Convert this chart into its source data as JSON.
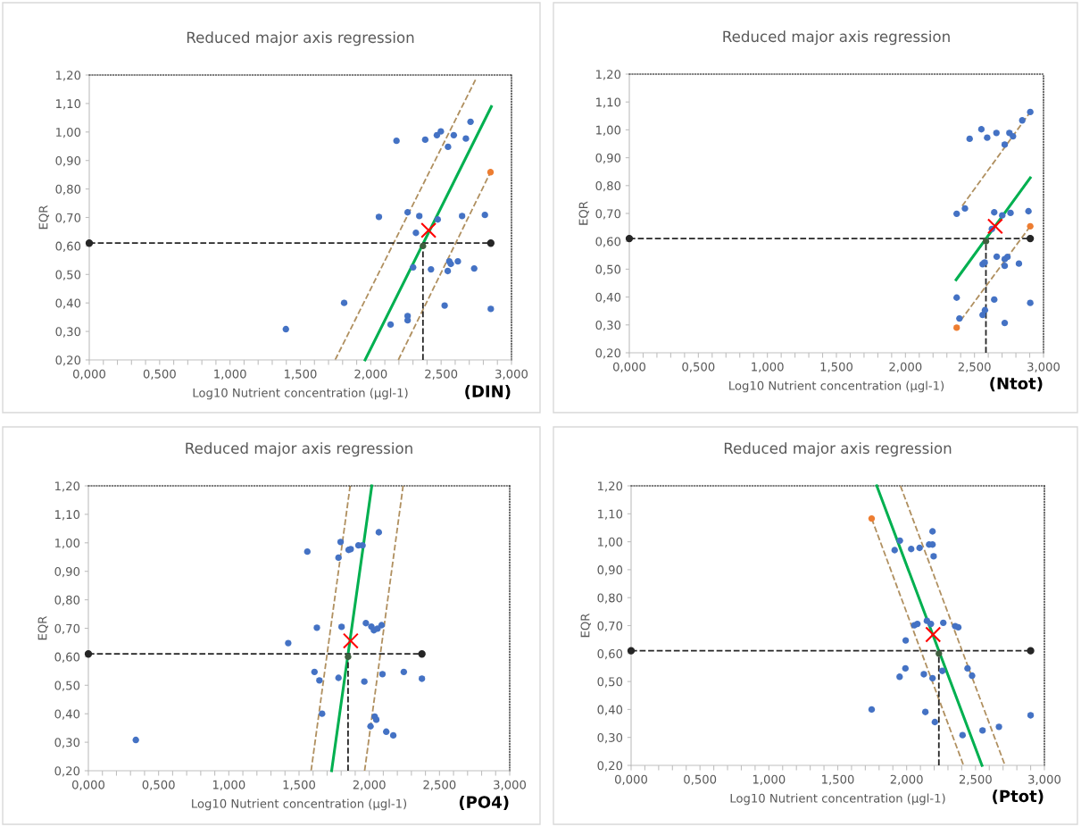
{
  "chart_data": [
    {
      "type": "scatter",
      "title": "Reduced major axis regression",
      "xlabel": "Log10 Nutrient concentration (µgl-1)",
      "ylabel": "EQR",
      "annotations": [
        "(DIN)"
      ],
      "xlim": [
        0,
        3
      ],
      "ylim": [
        0.2,
        1.2
      ],
      "xticks": [
        {
          "value": 0,
          "label": "0,000"
        },
        {
          "value": 0.1,
          "label": null
        },
        {
          "value": 0.2,
          "label": null
        },
        {
          "value": 0.3,
          "label": null
        },
        {
          "value": 0.4,
          "label": null
        },
        {
          "value": 0.5,
          "label": "0,500"
        },
        {
          "value": 0.6,
          "label": null
        },
        {
          "value": 0.7,
          "label": null
        },
        {
          "value": 0.8,
          "label": null
        },
        {
          "value": 0.9,
          "label": null
        },
        {
          "value": 1,
          "label": "1,000"
        },
        {
          "value": 1.1,
          "label": null
        },
        {
          "value": 1.2,
          "label": null
        },
        {
          "value": 1.3,
          "label": null
        },
        {
          "value": 1.4,
          "label": null
        },
        {
          "value": 1.5,
          "label": "1,500"
        },
        {
          "value": 1.6,
          "label": null
        },
        {
          "value": 1.7,
          "label": null
        },
        {
          "value": 1.8,
          "label": null
        },
        {
          "value": 1.9,
          "label": null
        },
        {
          "value": 2,
          "label": "2,000"
        },
        {
          "value": 2.1,
          "label": null
        },
        {
          "value": 2.2,
          "label": null
        },
        {
          "value": 2.3,
          "label": null
        },
        {
          "value": 2.4,
          "label": null
        },
        {
          "value": 2.5,
          "label": "2,500"
        },
        {
          "value": 2.6,
          "label": null
        },
        {
          "value": 2.7,
          "label": null
        },
        {
          "value": 2.8,
          "label": null
        },
        {
          "value": 2.9,
          "label": null
        },
        {
          "value": 3,
          "label": "3,000"
        }
      ],
      "yticks": [
        {
          "value": 0.2,
          "label": "0,20"
        },
        {
          "value": 0.3,
          "label": "0,30"
        },
        {
          "value": 0.4,
          "label": "0,40"
        },
        {
          "value": 0.5,
          "label": "0,50"
        },
        {
          "value": 0.6,
          "label": "0,60"
        },
        {
          "value": 0.7,
          "label": "0,70"
        },
        {
          "value": 0.8,
          "label": "0,80"
        },
        {
          "value": 0.9,
          "label": "0,90"
        },
        {
          "value": 1.0,
          "label": "1,00"
        },
        {
          "value": 1.1,
          "label": "1,10"
        },
        {
          "value": 1.2,
          "label": "1,20"
        }
      ],
      "series": [
        {
          "type": "line",
          "color": "#b09060",
          "line_style": "dashed",
          "marker": "none",
          "x": [
            1.747,
            2.744
          ],
          "values": [
            0.2,
            1.183
          ]
        },
        {
          "type": "line",
          "color": "#b09060",
          "line_style": "dashed",
          "marker": "none",
          "x": [
            2.196,
            2.851
          ],
          "values": [
            0.2,
            0.859
          ]
        },
        {
          "type": "line",
          "color": "#00b050",
          "line_style": "solid",
          "marker": "none",
          "x": [
            1.96,
            2.857
          ],
          "values": [
            0.2,
            1.089
          ]
        },
        {
          "type": "line",
          "color": "#262626",
          "line_style": "dashed",
          "marker": "circle",
          "x": [
            0,
            2.853
          ],
          "values": [
            0.61,
            0.61
          ]
        },
        {
          "type": "line",
          "color": "#262626",
          "line_style": "dashed",
          "marker": "none",
          "x": [
            2.371,
            2.371
          ],
          "values": [
            0.2,
            0.6
          ]
        },
        {
          "type": "scatter",
          "color": "#4472c4",
          "marker": "circle",
          "x": [
            1.397,
            1.811,
            2.058,
            2.183,
            2.141,
            2.262,
            2.262,
            2.262,
            2.301,
            2.321,
            2.345,
            2.387,
            2.428,
            2.47,
            2.498,
            2.476,
            2.549,
            2.525,
            2.547,
            2.558,
            2.569,
            2.59,
            2.619,
            2.649,
            2.676,
            2.709,
            2.735,
            2.811,
            2.853
          ],
          "values": [
            0.308,
            0.4,
            0.702,
            0.969,
            0.324,
            0.718,
            0.354,
            0.339,
            0.525,
            0.646,
            0.705,
            0.973,
            0.518,
            0.989,
            1.002,
            0.693,
            0.948,
            0.391,
            0.512,
            0.546,
            0.537,
            0.989,
            0.546,
            0.705,
            0.977,
            1.036,
            0.521,
            0.709,
            0.379
          ]
        },
        {
          "type": "scatter",
          "color": "#ed7d31",
          "marker": "circle",
          "x": [
            2.851
          ],
          "values": [
            0.859
          ]
        },
        {
          "type": "scatter",
          "color": "#ff0000",
          "marker": "cross",
          "x": [
            2.411
          ],
          "values": [
            0.655
          ]
        },
        {
          "type": "scatter",
          "color": "#3f5f3f",
          "marker": "circle",
          "x": [
            2.371
          ],
          "values": [
            0.6
          ]
        }
      ]
    },
    {
      "type": "scatter",
      "title": "Reduced major axis regression",
      "xlabel": "Log10 Nutrient concentration (µgl-1)",
      "ylabel": "EQR",
      "annotations": [
        "(Ntot)"
      ],
      "xlim": [
        0,
        3
      ],
      "ylim": [
        0.2,
        1.2
      ],
      "xticks": [
        {
          "value": 0,
          "label": "0,000"
        },
        {
          "value": 0.1,
          "label": null
        },
        {
          "value": 0.2,
          "label": null
        },
        {
          "value": 0.3,
          "label": null
        },
        {
          "value": 0.4,
          "label": null
        },
        {
          "value": 0.5,
          "label": "0,500"
        },
        {
          "value": 0.6,
          "label": null
        },
        {
          "value": 0.7,
          "label": null
        },
        {
          "value": 0.8,
          "label": null
        },
        {
          "value": 0.9,
          "label": null
        },
        {
          "value": 1,
          "label": "1,000"
        },
        {
          "value": 1.1,
          "label": null
        },
        {
          "value": 1.2,
          "label": null
        },
        {
          "value": 1.3,
          "label": null
        },
        {
          "value": 1.4,
          "label": null
        },
        {
          "value": 1.5,
          "label": "1,500"
        },
        {
          "value": 1.6,
          "label": null
        },
        {
          "value": 1.7,
          "label": null
        },
        {
          "value": 1.8,
          "label": null
        },
        {
          "value": 1.9,
          "label": null
        },
        {
          "value": 2,
          "label": "2,000"
        },
        {
          "value": 2.1,
          "label": null
        },
        {
          "value": 2.2,
          "label": null
        },
        {
          "value": 2.3,
          "label": null
        },
        {
          "value": 2.4,
          "label": null
        },
        {
          "value": 2.5,
          "label": "2,500"
        },
        {
          "value": 2.6,
          "label": null
        },
        {
          "value": 2.7,
          "label": null
        },
        {
          "value": 2.8,
          "label": null
        },
        {
          "value": 2.9,
          "label": null
        },
        {
          "value": 3,
          "label": "3,000"
        }
      ],
      "yticks": [
        {
          "value": 0.2,
          "label": "0,20"
        },
        {
          "value": 0.3,
          "label": "0,30"
        },
        {
          "value": 0.4,
          "label": "0,40"
        },
        {
          "value": 0.5,
          "label": "0,50"
        },
        {
          "value": 0.6,
          "label": "0,60"
        },
        {
          "value": 0.7,
          "label": "0,70"
        },
        {
          "value": 0.8,
          "label": "0,80"
        },
        {
          "value": 0.9,
          "label": "0,90"
        },
        {
          "value": 1.0,
          "label": "1,00"
        },
        {
          "value": 1.1,
          "label": "1,10"
        },
        {
          "value": 1.2,
          "label": "1,20"
        }
      ],
      "series": [
        {
          "type": "line",
          "color": "#b09060",
          "line_style": "dashed",
          "marker": "none",
          "x": [
            2.411,
            2.904
          ],
          "values": [
            0.727,
            1.064
          ]
        },
        {
          "type": "line",
          "color": "#b09060",
          "line_style": "dashed",
          "marker": "none",
          "x": [
            2.4,
            2.904
          ],
          "values": [
            0.316,
            0.654
          ]
        },
        {
          "type": "line",
          "color": "#00b050",
          "line_style": "solid",
          "marker": "none",
          "x": [
            2.367,
            2.904
          ],
          "values": [
            0.462,
            0.828
          ]
        },
        {
          "type": "line",
          "color": "#262626",
          "line_style": "dashed",
          "marker": "circle",
          "x": [
            0,
            2.904
          ],
          "values": [
            0.61,
            0.61
          ]
        },
        {
          "type": "line",
          "color": "#262626",
          "line_style": "dashed",
          "marker": "none",
          "x": [
            2.583,
            2.583
          ],
          "values": [
            0.2,
            0.6
          ]
        },
        {
          "type": "scatter",
          "color": "#4472c4",
          "marker": "circle",
          "x": [
            2.371,
            2.431,
            2.465,
            2.55,
            2.592,
            2.659,
            2.719,
            2.753,
            2.779,
            2.846,
            2.904,
            2.643,
            2.701,
            2.761,
            2.891,
            2.626,
            2.559,
            2.574,
            2.661,
            2.719,
            2.739,
            2.719,
            2.822,
            2.371,
            2.643,
            2.904,
            2.391,
            2.559,
            2.576,
            2.719
          ],
          "values": [
            0.699,
            0.718,
            0.968,
            1.002,
            0.972,
            0.989,
            0.947,
            0.989,
            0.977,
            1.034,
            1.064,
            0.704,
            0.693,
            0.702,
            0.708,
            0.644,
            0.518,
            0.524,
            0.545,
            0.536,
            0.544,
            0.512,
            0.52,
            0.398,
            0.391,
            0.379,
            0.323,
            0.336,
            0.353,
            0.307
          ]
        },
        {
          "type": "scatter",
          "color": "#ed7d31",
          "marker": "circle",
          "x": [
            2.371,
            2.904
          ],
          "values": [
            0.29,
            0.654
          ]
        },
        {
          "type": "scatter",
          "color": "#ff0000",
          "marker": "cross",
          "x": [
            2.65
          ],
          "values": [
            0.654
          ]
        },
        {
          "type": "scatter",
          "color": "#3f5f3f",
          "marker": "circle",
          "x": [
            2.583
          ],
          "values": [
            0.6
          ]
        }
      ]
    },
    {
      "type": "scatter",
      "title": "Reduced major axis regression",
      "xlabel": "Log10 Nutrient concentration (µgl-1)",
      "ylabel": "EQR",
      "annotations": [
        "(PO4)"
      ],
      "xlim": [
        0,
        3
      ],
      "ylim": [
        0.2,
        1.2
      ],
      "xticks": [
        {
          "value": 0,
          "label": "0,000"
        },
        {
          "value": 0.1,
          "label": null
        },
        {
          "value": 0.2,
          "label": null
        },
        {
          "value": 0.3,
          "label": null
        },
        {
          "value": 0.4,
          "label": null
        },
        {
          "value": 0.5,
          "label": "0,500"
        },
        {
          "value": 0.6,
          "label": null
        },
        {
          "value": 0.7,
          "label": null
        },
        {
          "value": 0.8,
          "label": null
        },
        {
          "value": 0.9,
          "label": null
        },
        {
          "value": 1,
          "label": "1,000"
        },
        {
          "value": 1.1,
          "label": null
        },
        {
          "value": 1.2,
          "label": null
        },
        {
          "value": 1.3,
          "label": null
        },
        {
          "value": 1.4,
          "label": null
        },
        {
          "value": 1.5,
          "label": "1,500"
        },
        {
          "value": 1.6,
          "label": null
        },
        {
          "value": 1.7,
          "label": null
        },
        {
          "value": 1.8,
          "label": null
        },
        {
          "value": 1.9,
          "label": null
        },
        {
          "value": 2,
          "label": "2,000"
        },
        {
          "value": 2.1,
          "label": null
        },
        {
          "value": 2.2,
          "label": null
        },
        {
          "value": 2.3,
          "label": null
        },
        {
          "value": 2.4,
          "label": null
        },
        {
          "value": 2.5,
          "label": "2,500"
        },
        {
          "value": 2.6,
          "label": null
        },
        {
          "value": 2.7,
          "label": null
        },
        {
          "value": 2.8,
          "label": null
        },
        {
          "value": 2.9,
          "label": null
        },
        {
          "value": 3,
          "label": "3,000"
        }
      ],
      "yticks": [
        {
          "value": 0.2,
          "label": "0,20"
        },
        {
          "value": 0.3,
          "label": "0,30"
        },
        {
          "value": 0.4,
          "label": "0,40"
        },
        {
          "value": 0.5,
          "label": "0,50"
        },
        {
          "value": 0.6,
          "label": "0,60"
        },
        {
          "value": 0.7,
          "label": "0,70"
        },
        {
          "value": 0.8,
          "label": "0,80"
        },
        {
          "value": 0.9,
          "label": "0,90"
        },
        {
          "value": 1.0,
          "label": "1,00"
        },
        {
          "value": 1.1,
          "label": "1,10"
        },
        {
          "value": 1.2,
          "label": "1,20"
        }
      ],
      "series": [
        {
          "type": "line",
          "color": "#b09060",
          "line_style": "dashed",
          "marker": "none",
          "x": [
            1.586,
            1.864
          ],
          "values": [
            0.2,
            1.2
          ]
        },
        {
          "type": "line",
          "color": "#b09060",
          "line_style": "dashed",
          "marker": "none",
          "x": [
            1.967,
            2.241
          ],
          "values": [
            0.2,
            1.2
          ]
        },
        {
          "type": "line",
          "color": "#00b050",
          "line_style": "solid",
          "marker": "none",
          "x": [
            1.732,
            2.018
          ],
          "values": [
            0.2,
            1.2
          ]
        },
        {
          "type": "line",
          "color": "#262626",
          "line_style": "dashed",
          "marker": "circle",
          "x": [
            0,
            2.375
          ],
          "values": [
            0.61,
            0.61
          ]
        },
        {
          "type": "line",
          "color": "#262626",
          "line_style": "dashed",
          "marker": "none",
          "x": [
            1.849,
            1.849
          ],
          "values": [
            0.2,
            0.6
          ]
        },
        {
          "type": "scatter",
          "color": "#4472c4",
          "marker": "circle",
          "x": [
            0.338,
            1.423,
            1.559,
            1.627,
            1.61,
            1.645,
            1.664,
            1.781,
            1.796,
            1.803,
            1.781,
            1.853,
            1.868,
            1.923,
            1.952,
            1.965,
            1.976,
            2.015,
            2.033,
            2.059,
            2.088,
            2.068,
            2.094,
            2.009,
            2.039,
            2.05,
            2.121,
            2.171,
            2.246,
            2.375
          ],
          "values": [
            0.308,
            0.648,
            0.969,
            0.702,
            0.547,
            0.517,
            0.4,
            0.948,
            1.003,
            0.705,
            0.526,
            0.975,
            0.978,
            0.991,
            0.991,
            0.513,
            0.718,
            0.706,
            0.693,
            0.699,
            0.711,
            1.037,
            0.539,
            0.356,
            0.39,
            0.379,
            0.337,
            0.324,
            0.547,
            0.523
          ]
        },
        {
          "type": "scatter",
          "color": "#ff0000",
          "marker": "cross",
          "x": [
            1.868
          ],
          "values": [
            0.656
          ]
        },
        {
          "type": "scatter",
          "color": "#3f5f3f",
          "marker": "circle",
          "x": [
            1.849
          ],
          "values": [
            0.6
          ]
        }
      ]
    },
    {
      "type": "scatter",
      "title": "Reduced major axis regression",
      "xlabel": "Log10 Nutrient concentration (µgl-1)",
      "ylabel": "EQR",
      "annotations": [
        "(Ptot)"
      ],
      "xlim": [
        0,
        3
      ],
      "ylim": [
        0.2,
        1.2
      ],
      "xticks": [
        {
          "value": 0,
          "label": "0,000"
        },
        {
          "value": 0.1,
          "label": null
        },
        {
          "value": 0.2,
          "label": null
        },
        {
          "value": 0.3,
          "label": null
        },
        {
          "value": 0.4,
          "label": null
        },
        {
          "value": 0.5,
          "label": "0,500"
        },
        {
          "value": 0.6,
          "label": null
        },
        {
          "value": 0.7,
          "label": null
        },
        {
          "value": 0.8,
          "label": null
        },
        {
          "value": 0.9,
          "label": null
        },
        {
          "value": 1,
          "label": "1,000"
        },
        {
          "value": 1.1,
          "label": null
        },
        {
          "value": 1.2,
          "label": null
        },
        {
          "value": 1.3,
          "label": null
        },
        {
          "value": 1.4,
          "label": null
        },
        {
          "value": 1.5,
          "label": "1,500"
        },
        {
          "value": 1.6,
          "label": null
        },
        {
          "value": 1.7,
          "label": null
        },
        {
          "value": 1.8,
          "label": null
        },
        {
          "value": 1.9,
          "label": null
        },
        {
          "value": 2,
          "label": "2,000"
        },
        {
          "value": 2.1,
          "label": null
        },
        {
          "value": 2.2,
          "label": null
        },
        {
          "value": 2.3,
          "label": null
        },
        {
          "value": 2.4,
          "label": null
        },
        {
          "value": 2.5,
          "label": "2,500"
        },
        {
          "value": 2.6,
          "label": null
        },
        {
          "value": 2.7,
          "label": null
        },
        {
          "value": 2.8,
          "label": null
        },
        {
          "value": 2.9,
          "label": null
        },
        {
          "value": 3,
          "label": "3,000"
        }
      ],
      "yticks": [
        {
          "value": 0.2,
          "label": "0,20"
        },
        {
          "value": 0.3,
          "label": "0,30"
        },
        {
          "value": 0.4,
          "label": "0,40"
        },
        {
          "value": 0.5,
          "label": "0,50"
        },
        {
          "value": 0.6,
          "label": "0,60"
        },
        {
          "value": 0.7,
          "label": "0,70"
        },
        {
          "value": 0.8,
          "label": "0,80"
        },
        {
          "value": 0.9,
          "label": "0,90"
        },
        {
          "value": 1.0,
          "label": "1,00"
        },
        {
          "value": 1.1,
          "label": "1,10"
        },
        {
          "value": 1.2,
          "label": "1,20"
        }
      ],
      "series": [
        {
          "type": "line",
          "color": "#b09060",
          "line_style": "dashed",
          "marker": "none",
          "x": [
            1.746,
            2.413
          ],
          "values": [
            1.083,
            0.2
          ]
        },
        {
          "type": "line",
          "color": "#b09060",
          "line_style": "dashed",
          "marker": "none",
          "x": [
            1.955,
            2.714
          ],
          "values": [
            1.2,
            0.2
          ]
        },
        {
          "type": "line",
          "color": "#00b050",
          "line_style": "solid",
          "marker": "none",
          "x": [
            1.783,
            2.547
          ],
          "values": [
            1.2,
            0.2
          ]
        },
        {
          "type": "line",
          "color": "#262626",
          "line_style": "dashed",
          "marker": "circle",
          "x": [
            0,
            2.9
          ],
          "values": [
            0.61,
            0.61
          ]
        },
        {
          "type": "line",
          "color": "#262626",
          "line_style": "dashed",
          "marker": "none",
          "x": [
            2.234,
            2.234
          ],
          "values": [
            0.2,
            0.6
          ]
        },
        {
          "type": "scatter",
          "color": "#4472c4",
          "marker": "circle",
          "x": [
            1.746,
            1.913,
            1.951,
            2.033,
            2.094,
            2.163,
            2.188,
            2.188,
            2.196,
            1.993,
            2.056,
            2.078,
            2.147,
            2.176,
            2.266,
            2.353,
            2.375,
            1.949,
            1.991,
            2.125,
            2.188,
            2.259,
            2.442,
            2.475,
            2.136,
            2.205,
            2.406,
            2.551,
            2.9,
            2.67
          ],
          "values": [
            0.4,
            0.97,
            1.004,
            0.974,
            0.978,
            0.99,
            0.99,
            1.037,
            0.948,
            0.647,
            0.701,
            0.706,
            0.717,
            0.706,
            0.71,
            0.698,
            0.694,
            0.517,
            0.547,
            0.526,
            0.512,
            0.538,
            0.547,
            0.521,
            0.391,
            0.355,
            0.308,
            0.325,
            0.379,
            0.338
          ]
        },
        {
          "type": "scatter",
          "color": "#ed7d31",
          "marker": "circle",
          "x": [
            1.746
          ],
          "values": [
            1.083
          ]
        },
        {
          "type": "scatter",
          "color": "#ff0000",
          "marker": "cross",
          "x": [
            2.192
          ],
          "values": [
            0.668
          ]
        },
        {
          "type": "scatter",
          "color": "#3f5f3f",
          "marker": "circle",
          "x": [
            2.234
          ],
          "values": [
            0.6
          ]
        }
      ]
    }
  ]
}
